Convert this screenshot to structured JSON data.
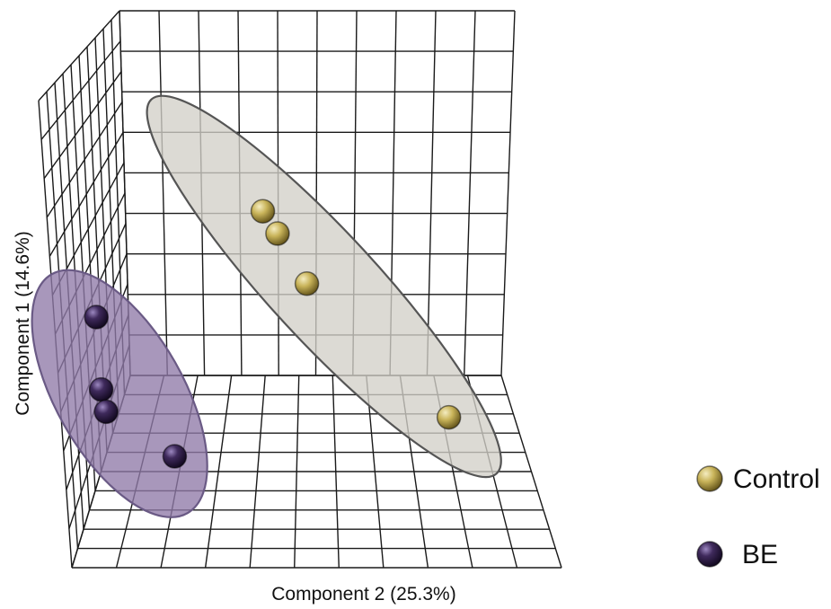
{
  "chart_data": {
    "type": "scatter",
    "projection": "3d",
    "title": "",
    "xlabel": "Component 2 (25.3%)",
    "ylabel": "Component 1 (14.6%)",
    "zlabel": "",
    "grid": true,
    "legend_placement": "right",
    "series": [
      {
        "name": "Control",
        "color": "#c9b45a",
        "points": [
          {
            "x": 0.39,
            "y": 0.64
          },
          {
            "x": 0.42,
            "y": 0.6
          },
          {
            "x": 0.48,
            "y": 0.51
          },
          {
            "x": 0.77,
            "y": 0.27
          }
        ]
      },
      {
        "name": "BE",
        "color": "#3f2a5c",
        "points": [
          {
            "x": 0.05,
            "y": 0.45
          },
          {
            "x": 0.06,
            "y": 0.32
          },
          {
            "x": 0.07,
            "y": 0.28
          },
          {
            "x": 0.21,
            "y": 0.2
          }
        ]
      }
    ],
    "ellipses": [
      {
        "series": "Control",
        "fill": "#d2d0c8",
        "stroke": "#555555"
      },
      {
        "series": "BE",
        "fill": "#8f7aa8",
        "stroke": "#6a5a85"
      }
    ]
  }
}
